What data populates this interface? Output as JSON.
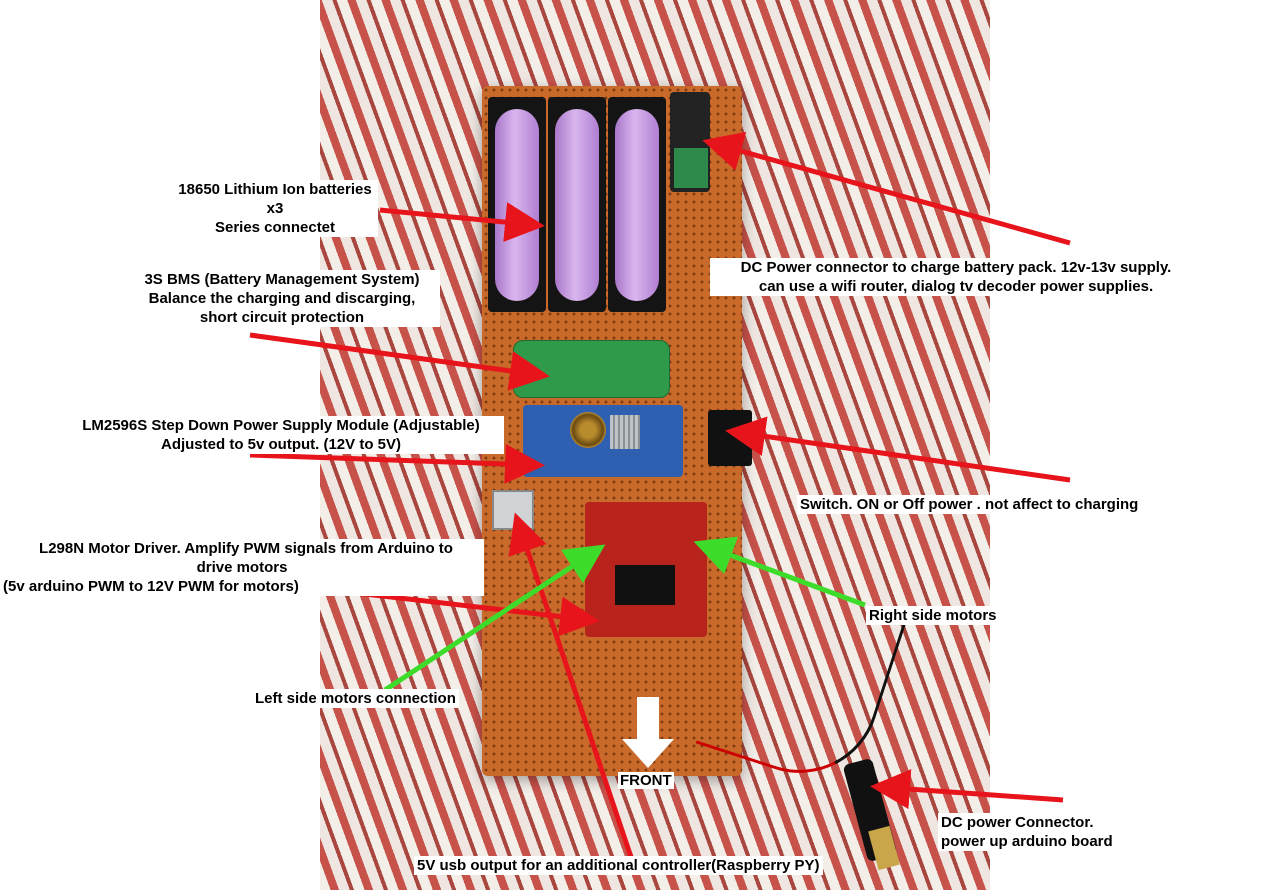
{
  "labels": {
    "batteries_line1": "18650 Lithium Ion batteries x3",
    "batteries_line2": "Series connectet",
    "bms_line1": "3S BMS (Battery Management System)",
    "bms_line2": "Balance the charging and discarging,",
    "bms_line3": "short circuit protection",
    "lm2596_line1": "LM2596S Step Down Power Supply Module (Adjustable)",
    "lm2596_line2": "Adjusted to 5v output. (12V to 5V)",
    "l298n_line1": "L298N Motor Driver.  Amplify PWM signals from Arduino to",
    "l298n_line2": "drive motors",
    "l298n_line3": "(5v arduino PWM to 12V PWM for motors)",
    "left_motors": "Left side motors connection",
    "dc_charge_line1": "DC Power connector to charge battery pack. 12v-13v supply.",
    "dc_charge_line2": "can use a wifi router, dialog tv decoder power supplies.",
    "switch": "Switch. ON or Off power . not affect to charging",
    "right_motors": "Right side motors",
    "front": "FRONT",
    "dc_arduino_line1": "DC power Connector.",
    "dc_arduino_line2": "power up arduino board",
    "usb_output": "5V usb output for an additional controller(Raspberry PY)"
  },
  "colors": {
    "arrow_red": "#e8141b",
    "arrow_green": "#3ddc2a",
    "arrow_white": "#ffffff"
  }
}
